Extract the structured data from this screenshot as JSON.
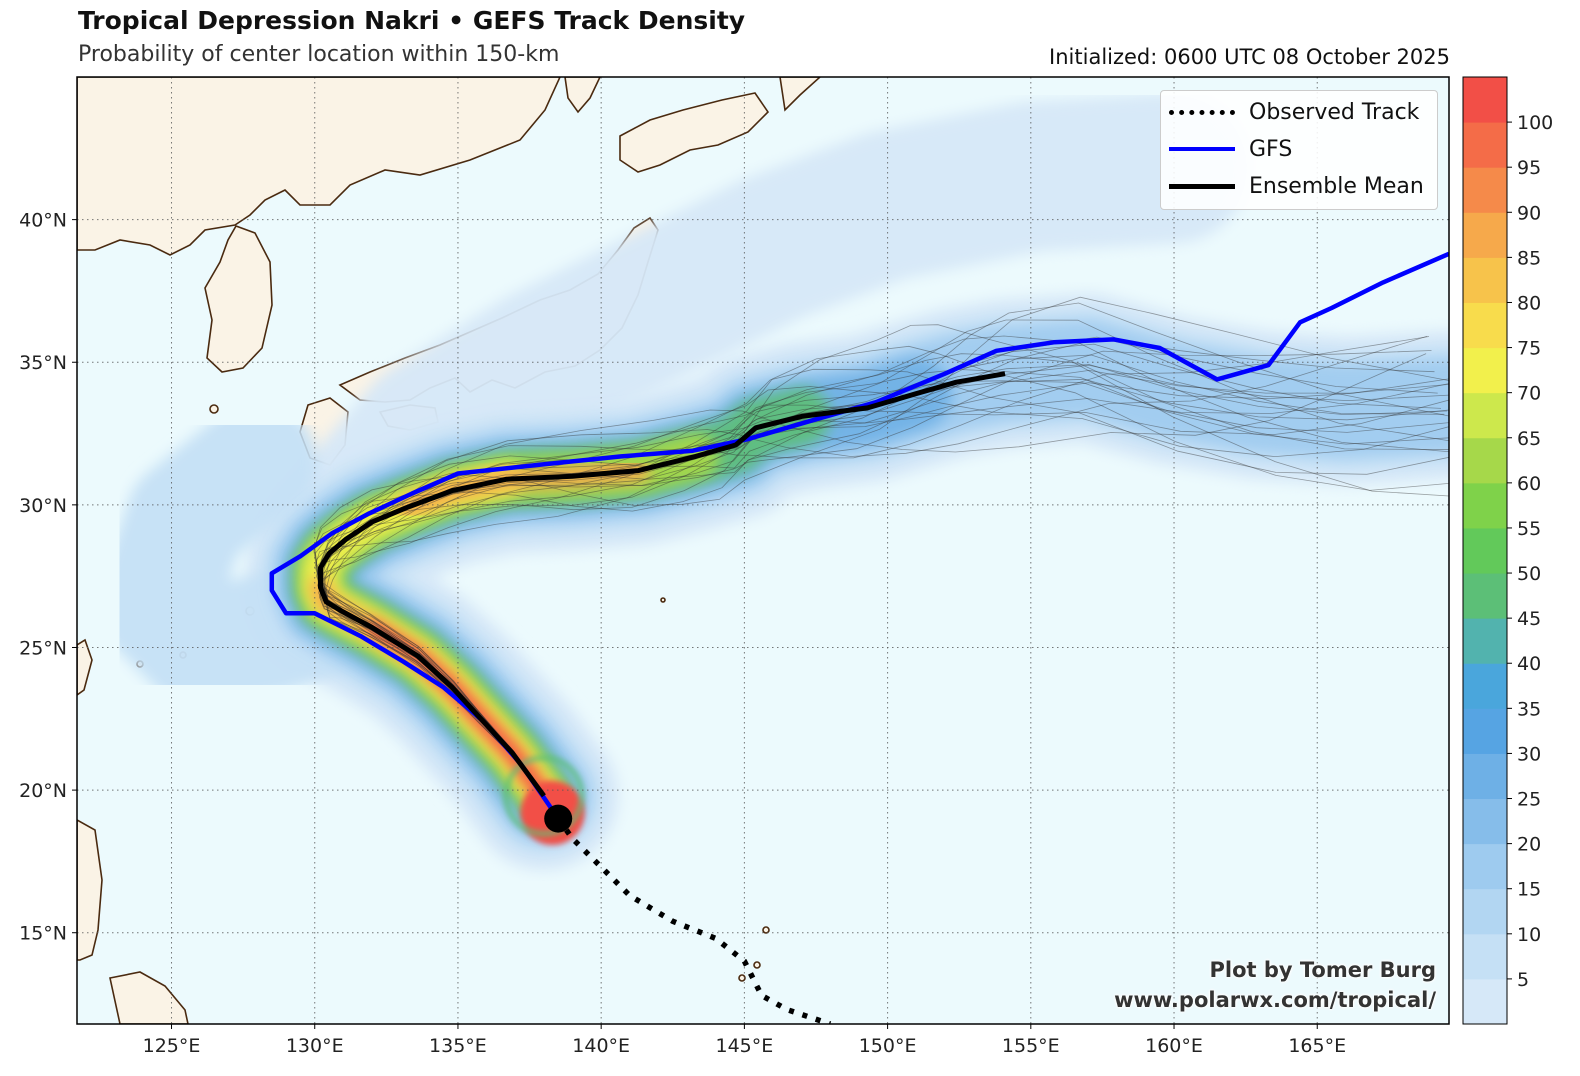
{
  "header": {
    "title": "Tropical Depression Nakri • GEFS Track Density",
    "subtitle": "Probability of center location within 150-km",
    "initialized": "Initialized: 0600 UTC 08 October 2025"
  },
  "legend": {
    "items": [
      {
        "label": "Observed Track",
        "style": "dotted",
        "color": "#000000"
      },
      {
        "label": "GFS",
        "style": "solid",
        "color": "#0000ff"
      },
      {
        "label": "Ensemble Mean",
        "style": "solid",
        "color": "#000000"
      }
    ]
  },
  "axes": {
    "lon_labels": [
      "125°E",
      "130°E",
      "135°E",
      "140°E",
      "145°E",
      "150°E",
      "155°E",
      "160°E",
      "165°E"
    ],
    "lat_labels": [
      "40°N",
      "35°N",
      "30°N",
      "25°N",
      "20°N",
      "15°N"
    ],
    "lon_values": [
      125,
      130,
      135,
      140,
      145,
      150,
      155,
      160,
      165
    ],
    "lat_values": [
      40,
      35,
      30,
      25,
      20,
      15
    ],
    "lon_range": [
      121.7,
      169.6
    ],
    "lat_range": [
      11.8,
      45.0
    ],
    "grid": "dotted"
  },
  "colorbar": {
    "labels": [
      "5",
      "10",
      "15",
      "20",
      "25",
      "30",
      "35",
      "40",
      "45",
      "50",
      "55",
      "60",
      "65",
      "70",
      "75",
      "80",
      "85",
      "90",
      "95",
      "100"
    ],
    "colors": [
      "#d6e8f8",
      "#c5e0f5",
      "#b2d6f2",
      "#9ecbef",
      "#86bdea",
      "#6eb0e6",
      "#56a4e3",
      "#4aa6dc",
      "#52b3ae",
      "#5cbf77",
      "#62c95a",
      "#7fd24a",
      "#a6d84a",
      "#cde84c",
      "#f2f04c",
      "#f8dc4c",
      "#f7c34b",
      "#f6a94b",
      "#f58a4a",
      "#f46c48",
      "#f24f47"
    ]
  },
  "storm": {
    "current_position": {
      "lon": 138.5,
      "lat": 19.0
    },
    "observed_track": [
      [
        138.5,
        19.0
      ],
      [
        139.0,
        18.3
      ],
      [
        140.0,
        17.3
      ],
      [
        141.0,
        16.3
      ],
      [
        142.5,
        15.4
      ],
      [
        144.0,
        14.8
      ],
      [
        145.0,
        14.0
      ],
      [
        145.6,
        12.8
      ],
      [
        146.5,
        12.3
      ],
      [
        148.0,
        11.8
      ]
    ],
    "gfs_track": [
      [
        138.3,
        19.3
      ],
      [
        137.2,
        20.9
      ],
      [
        135.9,
        22.4
      ],
      [
        134.5,
        23.6
      ],
      [
        133.1,
        24.5
      ],
      [
        131.6,
        25.4
      ],
      [
        130.8,
        25.8
      ],
      [
        130.0,
        26.2
      ],
      [
        129.0,
        26.2
      ],
      [
        128.5,
        27.0
      ],
      [
        128.5,
        27.6
      ],
      [
        129.5,
        28.2
      ],
      [
        130.6,
        29.0
      ],
      [
        131.9,
        29.7
      ],
      [
        133.4,
        30.4
      ],
      [
        135.0,
        31.1
      ],
      [
        137.8,
        31.4
      ],
      [
        140.7,
        31.7
      ],
      [
        143.2,
        31.9
      ],
      [
        145.1,
        32.3
      ],
      [
        147.5,
        33.0
      ],
      [
        149.6,
        33.6
      ],
      [
        152.0,
        34.6
      ],
      [
        153.8,
        35.4
      ],
      [
        155.8,
        35.7
      ],
      [
        157.9,
        35.8
      ],
      [
        159.5,
        35.5
      ],
      [
        161.5,
        34.4
      ],
      [
        163.3,
        34.9
      ],
      [
        164.4,
        36.4
      ],
      [
        165.5,
        36.9
      ],
      [
        167.3,
        37.8
      ],
      [
        169.6,
        38.8
      ]
    ],
    "ensemble_mean": [
      [
        138.0,
        19.8
      ],
      [
        136.9,
        21.3
      ],
      [
        135.8,
        22.5
      ],
      [
        134.8,
        23.6
      ],
      [
        133.6,
        24.7
      ],
      [
        132.0,
        25.7
      ],
      [
        130.9,
        26.3
      ],
      [
        130.4,
        26.6
      ],
      [
        130.2,
        27.1
      ],
      [
        130.2,
        27.8
      ],
      [
        130.5,
        28.3
      ],
      [
        131.1,
        28.8
      ],
      [
        132.0,
        29.4
      ],
      [
        133.2,
        29.9
      ],
      [
        134.8,
        30.5
      ],
      [
        136.7,
        30.9
      ],
      [
        139.0,
        31.0
      ],
      [
        141.3,
        31.2
      ],
      [
        143.3,
        31.7
      ],
      [
        144.7,
        32.1
      ],
      [
        145.4,
        32.7
      ],
      [
        147.0,
        33.1
      ],
      [
        149.3,
        33.4
      ],
      [
        151.0,
        33.9
      ],
      [
        152.4,
        34.3
      ],
      [
        154.1,
        34.6
      ]
    ]
  },
  "credit": {
    "line1": "Plot by Tomer Burg",
    "line2": "www.polarwx.com/tropical/"
  }
}
